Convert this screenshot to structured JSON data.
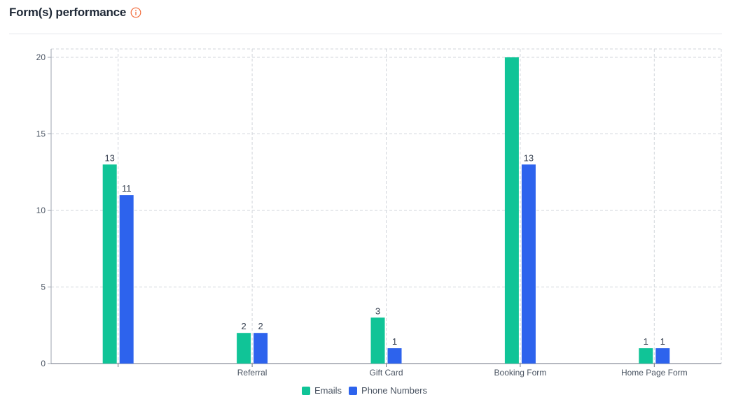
{
  "header": {
    "title": "Form(s) performance",
    "info_icon": "info-icon"
  },
  "colors": {
    "emails": "#10c497",
    "phone_numbers": "#2d63ed",
    "info_accent": "#f26b3a"
  },
  "chart_data": {
    "type": "bar",
    "title": "Form(s) performance",
    "categories": [
      "",
      "Referral",
      "Gift Card",
      "Booking Form",
      "Home Page Form"
    ],
    "series": [
      {
        "name": "Emails",
        "values": [
          13,
          2,
          3,
          20,
          1
        ],
        "value_labels": [
          "13",
          "2",
          "3",
          "",
          "1"
        ]
      },
      {
        "name": "Phone Numbers",
        "values": [
          11,
          2,
          1,
          13,
          1
        ],
        "value_labels": [
          "11",
          "2",
          "1",
          "13",
          "1"
        ]
      }
    ],
    "ylim": [
      0,
      20
    ],
    "yticks": [
      0,
      5,
      10,
      15,
      20
    ],
    "xlabel": "",
    "ylabel": "",
    "grid": true,
    "legend_position": "bottom"
  }
}
